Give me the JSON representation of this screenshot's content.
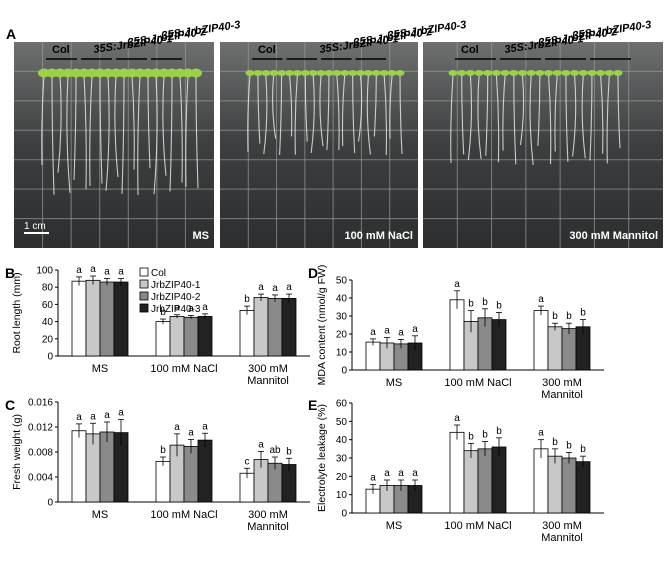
{
  "panel_a": {
    "letter": "A",
    "scale_bar": "1 cm",
    "plates": [
      {
        "condition": "MS",
        "genotypes": [
          "Col",
          "35S:JrbZIP40-1",
          "35S:JrbZIP40-2",
          "35S:JrbZIP40-3"
        ]
      },
      {
        "condition": "100 mM NaCl",
        "genotypes": [
          "Col",
          "35S:JrbZIP40-1",
          "35S:JrbZIP40-2",
          "35S:JrbZIP40-3"
        ]
      },
      {
        "condition": "300 mM Mannitol",
        "genotypes": [
          "Col",
          "35S:JrbZIP40-1",
          "35S:JrbZIP40-2",
          "35S:JrbZIP40-3"
        ]
      }
    ]
  },
  "colors": {
    "Col": "#ffffff",
    "JrbZIP40-1": "#c8c8c8",
    "JrbZIP40-2": "#8a8a8a",
    "JrbZIP40-3": "#222222"
  },
  "chart_data": [
    {
      "panel": "B",
      "type": "bar",
      "ylabel": "Root length (mm)",
      "ylim": [
        0,
        100
      ],
      "yticks": [
        "0",
        "20",
        "40",
        "60",
        "80",
        "100"
      ],
      "categories": [
        "MS",
        "100 mM NaCl",
        "300 mM Mannitol"
      ],
      "legend": [
        "Col",
        "JrbZIP40-1",
        "JrbZIP40-2",
        "JrbZIP40-3"
      ],
      "series": [
        {
          "name": "Col",
          "values": [
            87,
            40,
            53
          ],
          "errors": [
            5,
            3,
            5
          ],
          "letters": [
            "a",
            "b",
            "b"
          ]
        },
        {
          "name": "JrbZIP40-1",
          "values": [
            88,
            46,
            68
          ],
          "errors": [
            5,
            2,
            4
          ],
          "letters": [
            "a",
            "a",
            "a"
          ]
        },
        {
          "name": "JrbZIP40-2",
          "values": [
            86,
            45,
            67
          ],
          "errors": [
            4,
            2,
            4
          ],
          "letters": [
            "a",
            "a",
            "a"
          ]
        },
        {
          "name": "JrbZIP40-3",
          "values": [
            86,
            46,
            67
          ],
          "errors": [
            4,
            3,
            5
          ],
          "letters": [
            "a",
            "a",
            "a"
          ]
        }
      ]
    },
    {
      "panel": "C",
      "type": "bar",
      "ylabel": "Fresh weight (g)",
      "ylim": [
        0,
        0.016
      ],
      "yticks": [
        "0",
        "0.004",
        "0.008",
        "0.012",
        "0.016"
      ],
      "categories": [
        "MS",
        "100 mM NaCl",
        "300 mM Mannitol"
      ],
      "series": [
        {
          "name": "Col",
          "values": [
            0.0114,
            0.0065,
            0.0046
          ],
          "errors": [
            0.0011,
            0.0007,
            0.0008
          ],
          "letters": [
            "a",
            "b",
            "c"
          ]
        },
        {
          "name": "JrbZIP40-1",
          "values": [
            0.0109,
            0.0091,
            0.0068
          ],
          "errors": [
            0.0017,
            0.0018,
            0.0013
          ],
          "letters": [
            "a",
            "a",
            "a"
          ]
        },
        {
          "name": "JrbZIP40-2",
          "values": [
            0.0112,
            0.0089,
            0.0062
          ],
          "errors": [
            0.0016,
            0.0011,
            0.001
          ],
          "letters": [
            "a",
            "a",
            "ab"
          ]
        },
        {
          "name": "JrbZIP40-3",
          "values": [
            0.0111,
            0.0099,
            0.006
          ],
          "errors": [
            0.0021,
            0.0011,
            0.001
          ],
          "letters": [
            "a",
            "a",
            "b"
          ]
        }
      ]
    },
    {
      "panel": "D",
      "type": "bar",
      "ylabel": "MDA content (nmol/g FW)",
      "ylim": [
        0,
        50
      ],
      "yticks": [
        "0",
        "10",
        "20",
        "30",
        "40",
        "50"
      ],
      "categories": [
        "MS",
        "100 mM NaCl",
        "300 mM Mannitol"
      ],
      "series": [
        {
          "name": "Col",
          "values": [
            15.5,
            39,
            33
          ],
          "errors": [
            1.8,
            5,
            2.5
          ],
          "letters": [
            "a",
            "a",
            "a"
          ]
        },
        {
          "name": "JrbZIP40-1",
          "values": [
            15,
            27,
            24
          ],
          "errors": [
            3,
            6,
            2
          ],
          "letters": [
            "a",
            "b",
            "b"
          ]
        },
        {
          "name": "JrbZIP40-2",
          "values": [
            14.5,
            29,
            23
          ],
          "errors": [
            2.5,
            5,
            3
          ],
          "letters": [
            "a",
            "b",
            "b"
          ]
        },
        {
          "name": "JrbZIP40-3",
          "values": [
            15,
            28,
            24
          ],
          "errors": [
            4,
            4,
            4
          ],
          "letters": [
            "a",
            "b",
            "b"
          ]
        }
      ]
    },
    {
      "panel": "E",
      "type": "bar",
      "ylabel": "Electrolyte leakage (%)",
      "ylim": [
        0,
        60
      ],
      "yticks": [
        "0",
        "10",
        "20",
        "30",
        "40",
        "50",
        "60"
      ],
      "categories": [
        "MS",
        "100 mM NaCl",
        "300 mM Mannitol"
      ],
      "series": [
        {
          "name": "Col",
          "values": [
            13,
            44,
            35
          ],
          "errors": [
            2.5,
            4,
            5
          ],
          "letters": [
            "a",
            "a",
            "a"
          ]
        },
        {
          "name": "JrbZIP40-1",
          "values": [
            15,
            34,
            31
          ],
          "errors": [
            3,
            4,
            4
          ],
          "letters": [
            "a",
            "b",
            "b"
          ]
        },
        {
          "name": "JrbZIP40-2",
          "values": [
            15,
            35,
            30
          ],
          "errors": [
            3,
            4,
            3
          ],
          "letters": [
            "a",
            "b",
            "b"
          ]
        },
        {
          "name": "JrbZIP40-3",
          "values": [
            15,
            36,
            28
          ],
          "errors": [
            3,
            5,
            3
          ],
          "letters": [
            "a",
            "b",
            "b"
          ]
        }
      ]
    }
  ]
}
